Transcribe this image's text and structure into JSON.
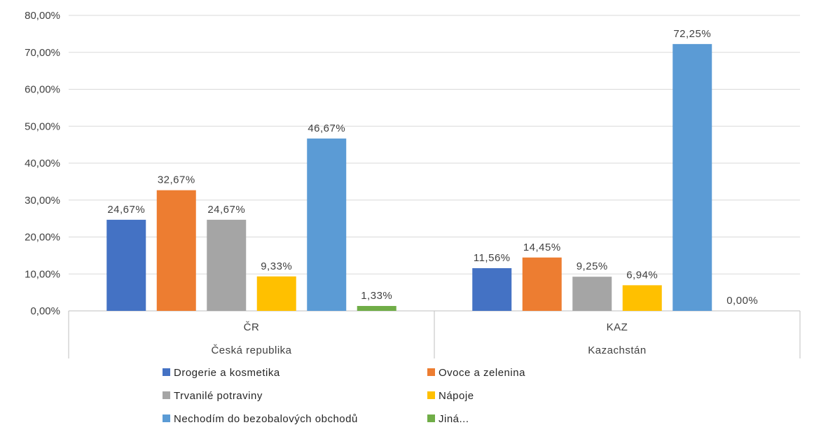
{
  "chart_data": {
    "type": "bar",
    "ylim": [
      0,
      80
    ],
    "y_ticks": [
      "0,00%",
      "10,00%",
      "20,00%",
      "30,00%",
      "40,00%",
      "50,00%",
      "60,00%",
      "70,00%",
      "80,00%"
    ],
    "groups": [
      {
        "code": "ČR",
        "name": "Česká republika"
      },
      {
        "code": "KAZ",
        "name": "Kazachstán"
      }
    ],
    "series": [
      {
        "name": "Drogerie a kosmetika",
        "color": "#4472C4",
        "values": [
          24.67,
          11.56
        ],
        "labels": [
          "24,67%",
          "11,56%"
        ]
      },
      {
        "name": "Ovoce a zelenina",
        "color": "#ED7D31",
        "values": [
          32.67,
          14.45
        ],
        "labels": [
          "32,67%",
          "14,45%"
        ]
      },
      {
        "name": "Trvanilé potraviny",
        "color": "#A5A5A5",
        "values": [
          24.67,
          9.25
        ],
        "labels": [
          "24,67%",
          "9,25%"
        ]
      },
      {
        "name": "Nápoje",
        "color": "#FFC000",
        "values": [
          9.33,
          6.94
        ],
        "labels": [
          "9,33%",
          "6,94%"
        ]
      },
      {
        "name": "Nechodím do bezobalových obchodů",
        "color": "#5B9BD5",
        "values": [
          46.67,
          72.25
        ],
        "labels": [
          "46,67%",
          "72,25%"
        ]
      },
      {
        "name": "Jiná...",
        "color": "#70AD47",
        "values": [
          1.33,
          0.0
        ],
        "labels": [
          "1,33%",
          "0,00%"
        ]
      }
    ],
    "grid": true,
    "legend_position": "bottom"
  }
}
